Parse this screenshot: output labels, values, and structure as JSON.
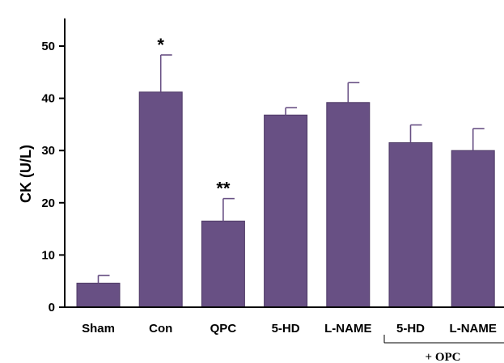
{
  "chart_data": {
    "type": "bar",
    "ylabel": "CK (U/L)",
    "ylim": [
      0,
      55
    ],
    "yticks": [
      0,
      10,
      20,
      30,
      40,
      50
    ],
    "grid": false,
    "categories": [
      "Sham",
      "Con",
      "QPC",
      "5-HD",
      "L-NAME",
      "5-HD",
      "L-NAME"
    ],
    "values": [
      4.6,
      41.2,
      16.5,
      36.8,
      39.2,
      31.5,
      30.0
    ],
    "errors": [
      1.5,
      7.1,
      4.3,
      1.4,
      3.8,
      3.4,
      4.2
    ],
    "annotations": [
      "",
      "*",
      "**",
      "",
      "",
      "",
      ""
    ],
    "group": {
      "label": "+ OPC",
      "categories": [
        5,
        6
      ]
    },
    "colors": {
      "bar": "#685084",
      "bar_edge": "#4e3a66",
      "axis": "#000000"
    }
  }
}
